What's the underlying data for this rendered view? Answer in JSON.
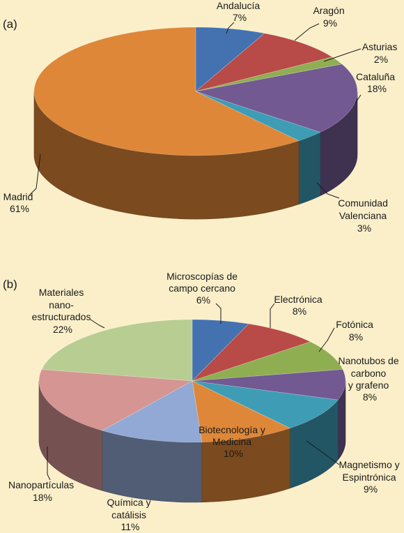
{
  "colors": {
    "background": "#fbefca"
  },
  "chart_data": [
    {
      "type": "pie",
      "panel_label": "(a)",
      "slices": [
        {
          "label": [
            "Andalucía"
          ],
          "pct_text": "7%",
          "value": 7,
          "color": "#4472b0"
        },
        {
          "label": [
            "Aragón"
          ],
          "pct_text": "9%",
          "value": 9,
          "color": "#b84a47"
        },
        {
          "label": [
            "Asturias"
          ],
          "pct_text": "2%",
          "value": 2,
          "color": "#8fae52"
        },
        {
          "label": [
            "Cataluña"
          ],
          "pct_text": "18%",
          "value": 18,
          "color": "#725991"
        },
        {
          "label": [
            "Comunidad",
            "Valenciana"
          ],
          "pct_text": "3%",
          "value": 3,
          "color": "#3f9cb5"
        },
        {
          "label": [
            "Madrid"
          ],
          "pct_text": "61%",
          "value": 61,
          "color": "#df8738"
        }
      ]
    },
    {
      "type": "pie",
      "panel_label": "(b)",
      "slices": [
        {
          "label": [
            "Microscopías de",
            "campo cercano"
          ],
          "pct_text": "6%",
          "value": 6,
          "color": "#4472b0"
        },
        {
          "label": [
            "Electrónica"
          ],
          "pct_text": "8%",
          "value": 8,
          "color": "#b84a47"
        },
        {
          "label": [
            "Fotónica"
          ],
          "pct_text": "8%",
          "value": 8,
          "color": "#8fae52"
        },
        {
          "label": [
            "Nanotubos de",
            "carbono",
            "y  grafeno"
          ],
          "pct_text": "8%",
          "value": 8,
          "color": "#725991"
        },
        {
          "label": [
            "Magnetismo y",
            "Espintrónica"
          ],
          "pct_text": "9%",
          "value": 9,
          "color": "#3f9cb5"
        },
        {
          "label": [
            "Biotecnología y",
            "Medicina"
          ],
          "pct_text": "10%",
          "value": 10,
          "color": "#df8738"
        },
        {
          "label": [
            "Química y",
            "catálisis"
          ],
          "pct_text": "11%",
          "value": 11,
          "color": "#91a9d4"
        },
        {
          "label": [
            "Nanopartículas"
          ],
          "pct_text": "18%",
          "value": 18,
          "color": "#d59593"
        },
        {
          "label": [
            "Materiales",
            "nano-",
            "estructurados"
          ],
          "pct_text": "22%",
          "value": 22,
          "color": "#b8cd92"
        }
      ]
    }
  ]
}
